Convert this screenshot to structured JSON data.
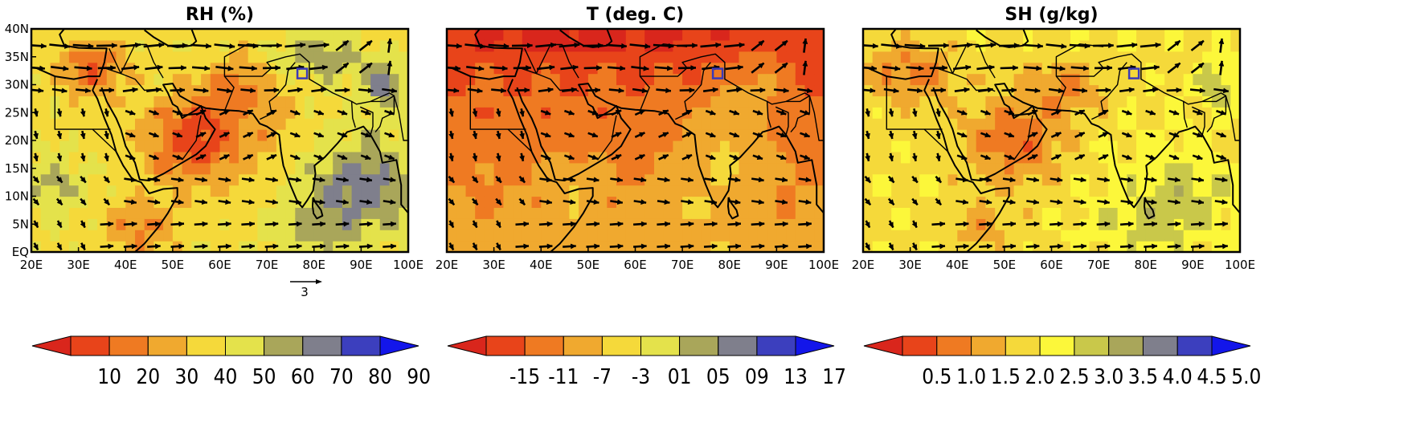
{
  "panels": [
    {
      "id": "rh",
      "title": "RH (%)",
      "field": "rh",
      "show_vector_key": true,
      "colorbar": {
        "labels": [
          "10",
          "20",
          "30",
          "40",
          "50",
          "60",
          "70",
          "80",
          "90"
        ],
        "colors": [
          "#d9261c",
          "#e8441a",
          "#ef7a22",
          "#f0a92f",
          "#f5d93a",
          "#e4e24b",
          "#a9a65a",
          "#7f7f8c",
          "#3c3fbe",
          "#1316ea"
        ]
      }
    },
    {
      "id": "t",
      "title": "T (deg. C)",
      "field": "t",
      "show_vector_key": false,
      "colorbar": {
        "labels": [
          "-15",
          "-11",
          "-7",
          "-3",
          "01",
          "05",
          "09",
          "13",
          "17"
        ],
        "colors": [
          "#d9261c",
          "#e8441a",
          "#ef7a22",
          "#f0a92f",
          "#f5d93a",
          "#e4e24b",
          "#a9a65a",
          "#7f7f8c",
          "#3c3fbe",
          "#1316ea"
        ]
      }
    },
    {
      "id": "sh",
      "title": "SH (g/kg)",
      "field": "sh",
      "show_vector_key": false,
      "colorbar": {
        "labels": [
          "0.5",
          "1.0",
          "1.5",
          "2.0",
          "2.5",
          "3.0",
          "3.5",
          "4.0",
          "4.5",
          "5.0"
        ],
        "colors": [
          "#d9261c",
          "#e8441a",
          "#ef7a22",
          "#f0a92f",
          "#f5d93a",
          "#fcf73a",
          "#c9c84a",
          "#a9a65a",
          "#7f7f8c",
          "#3c3fbe",
          "#1316ea"
        ]
      }
    }
  ],
  "axes": {
    "x_ticks": [
      "20E",
      "30E",
      "40E",
      "50E",
      "60E",
      "70E",
      "80E",
      "90E",
      "100E"
    ],
    "y_ticks": [
      "40N",
      "35N",
      "30N",
      "25N",
      "20N",
      "15N",
      "10N",
      "5N",
      "EQ"
    ],
    "lon_range": [
      20,
      100
    ],
    "lat_range": [
      0,
      40
    ]
  },
  "vector_key": {
    "label": "3"
  },
  "marker": {
    "lon": 77.5,
    "lat": 32,
    "color": "#3a3ab8"
  }
}
